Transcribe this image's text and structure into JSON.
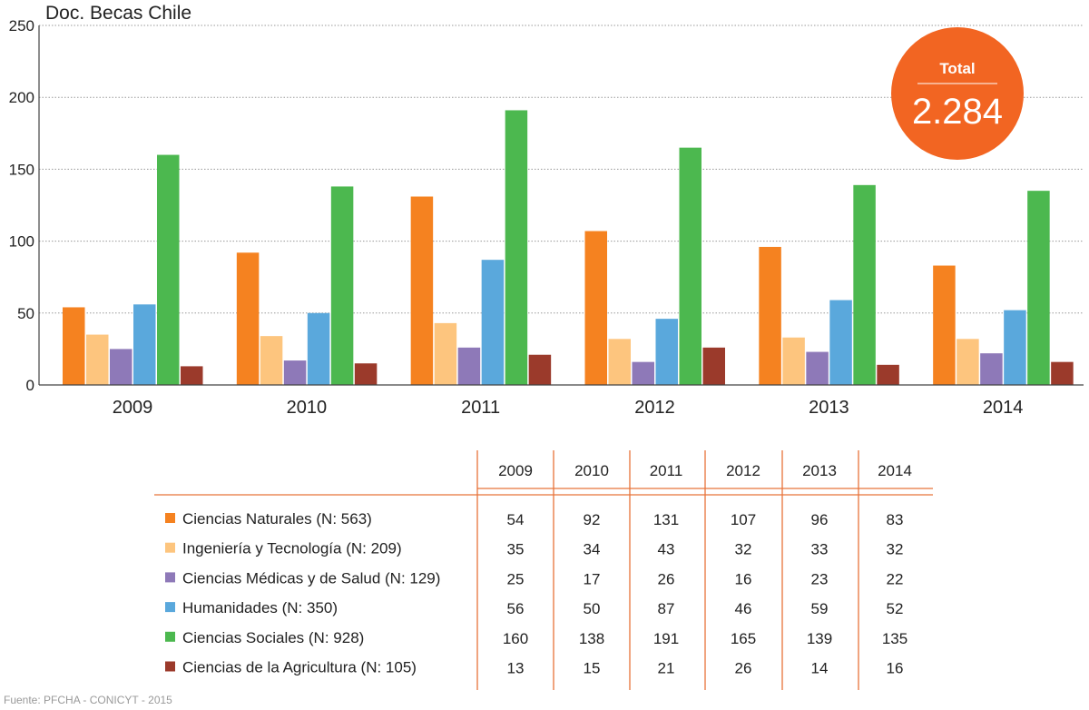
{
  "chart_data": {
    "type": "bar",
    "title": "Doc. Becas Chile",
    "categories": [
      "2009",
      "2010",
      "2011",
      "2012",
      "2013",
      "2014"
    ],
    "ylim": [
      0,
      250
    ],
    "yticks": [
      "0",
      "50",
      "100",
      "150",
      "200",
      "250"
    ],
    "grid": true,
    "series": [
      {
        "name": "Ciencias Naturales (N: 563)",
        "color": "#f58220",
        "values": [
          54,
          92,
          131,
          107,
          96,
          83
        ]
      },
      {
        "name": "Ingeniería y Tecnología (N: 209)",
        "color": "#fdc57e",
        "values": [
          35,
          34,
          43,
          32,
          33,
          32
        ]
      },
      {
        "name": "Ciencias Médicas y de Salud (N: 129)",
        "color": "#8e79b8",
        "values": [
          25,
          17,
          26,
          16,
          23,
          22
        ]
      },
      {
        "name": "Humanidades (N: 350)",
        "color": "#5aa8dc",
        "values": [
          56,
          50,
          87,
          46,
          59,
          52
        ]
      },
      {
        "name": "Ciencias Sociales (N: 928)",
        "color": "#4cb84f",
        "values": [
          160,
          138,
          191,
          165,
          139,
          135
        ]
      },
      {
        "name": "Ciencias de la Agricultura (N: 105)",
        "color": "#9b3a2b",
        "values": [
          13,
          15,
          21,
          26,
          14,
          16
        ]
      }
    ],
    "total": {
      "label": "Total",
      "value": "2.284",
      "color": "#f26522"
    }
  },
  "source": "Fuente: PFCHA - CONICYT - 2015",
  "colors": {
    "table_lines": "#e8733a",
    "grid": "#999999"
  }
}
